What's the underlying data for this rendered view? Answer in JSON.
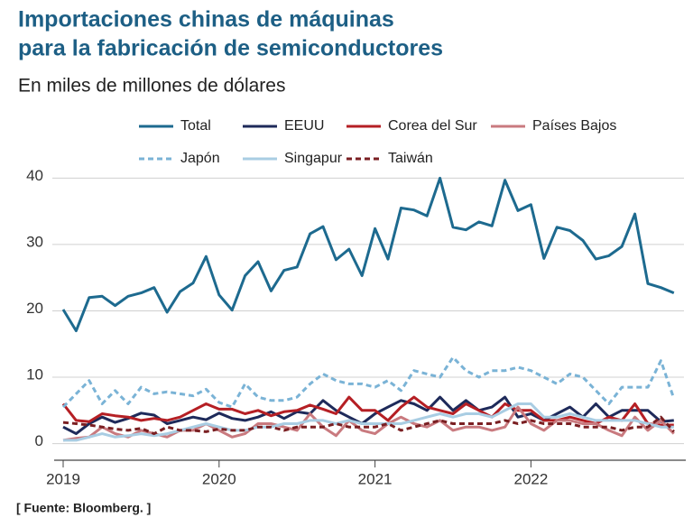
{
  "chart_data": {
    "type": "line",
    "title": [
      "Importaciones chinas de máquinas",
      "para la fabricación de semiconductores"
    ],
    "subtitle": "En miles de millones de dólares",
    "source": "[ Fuente: Bloomberg. ]",
    "categories": [
      "2019",
      null,
      null,
      null,
      null,
      null,
      null,
      null,
      null,
      null,
      null,
      null,
      "2020",
      null,
      null,
      null,
      null,
      null,
      null,
      null,
      null,
      null,
      null,
      null,
      "2021",
      null,
      null,
      null,
      null,
      null,
      null,
      null,
      null,
      null,
      null,
      null,
      "2022",
      null,
      null,
      null,
      null,
      null,
      null,
      null,
      null,
      null,
      null,
      null
    ],
    "ylim": [
      -2.5,
      41
    ],
    "yticks": [
      0,
      10,
      20,
      30,
      40
    ],
    "grid": true,
    "series": [
      {
        "name": "Total",
        "color": "#1d6a8f",
        "dashed": false,
        "values": [
          20.2,
          17,
          22,
          22.2,
          20.8,
          22.2,
          22.7,
          23.5,
          19.8,
          22.9,
          24.2,
          28.2,
          22.4,
          20.1,
          25.3,
          27.4,
          23,
          26.1,
          26.6,
          31.6,
          32.7,
          27.7,
          29.3,
          25.3,
          32.4,
          27.8,
          35.5,
          35.2,
          34.3,
          40,
          32.6,
          32.2,
          33.4,
          32.8,
          39.7,
          35.1,
          36,
          27.9,
          32.6,
          32.1,
          30.6,
          27.8,
          28.3,
          29.7,
          34.6,
          24.1,
          23.5,
          22.7
        ]
      },
      {
        "name": "EEUU",
        "color": "#1e2a5a",
        "dashed": false,
        "values": [
          2.5,
          1.5,
          3,
          4,
          3.2,
          3.8,
          4.6,
          4.3,
          3,
          3.5,
          4,
          3.6,
          4.6,
          3.8,
          3.5,
          4,
          4.8,
          3.8,
          4.8,
          4.5,
          6.5,
          5,
          4,
          3,
          4.5,
          5.5,
          6.5,
          6,
          5,
          7,
          5,
          6.5,
          5,
          5.5,
          7,
          4,
          4.5,
          3.5,
          4.5,
          5.5,
          4,
          6,
          4,
          5,
          5,
          5,
          3.3,
          3.5
        ]
      },
      {
        "name": "Corea del Sur",
        "color": "#b51f24",
        "dashed": false,
        "values": [
          6,
          3.5,
          3.3,
          4.5,
          4.2,
          4,
          3.5,
          3.8,
          3.5,
          4,
          5,
          6,
          5.2,
          5.2,
          4.5,
          5,
          4.2,
          4.8,
          5,
          5.8,
          5.2,
          4.5,
          7,
          5,
          5,
          3.5,
          5.5,
          7,
          5.5,
          5,
          4.5,
          6,
          5,
          4,
          6,
          5,
          5,
          3.5,
          3.5,
          4,
          3.5,
          3,
          4,
          3.5,
          6,
          3,
          2.8,
          2.8
        ]
      },
      {
        "name": "Países Bajos",
        "color": "#c97a7f",
        "dashed": false,
        "values": [
          0.5,
          0.8,
          1,
          2.5,
          1.5,
          1,
          2,
          1.5,
          1,
          2,
          2,
          3,
          2,
          1,
          1.5,
          3,
          3,
          2.5,
          2,
          4.5,
          2.5,
          1.2,
          3.5,
          2,
          1.5,
          3,
          4,
          3,
          2.5,
          3.5,
          2,
          2.5,
          2.5,
          2,
          2.5,
          5.5,
          3,
          2,
          3.5,
          3.5,
          3,
          3,
          2,
          1.2,
          4,
          2,
          3.5,
          1.5
        ]
      },
      {
        "name": "Japón",
        "color": "#7ab3d6",
        "dashed": true,
        "values": [
          5.5,
          7.5,
          9.5,
          6,
          8,
          6,
          8.5,
          7.5,
          7.8,
          7.5,
          7.2,
          8.2,
          6.2,
          5.5,
          9,
          7,
          6.5,
          6.5,
          7,
          9,
          10.5,
          9.5,
          9,
          9,
          8.5,
          9.5,
          8,
          11,
          10.5,
          10,
          13,
          11,
          10,
          11,
          11,
          11.5,
          11,
          10,
          9,
          10.5,
          10,
          8,
          6,
          8.5,
          8.5,
          8.5,
          12.5,
          6.8
        ]
      },
      {
        "name": "Singapur",
        "color": "#a9cde3",
        "dashed": false,
        "values": [
          0.5,
          0.5,
          1,
          1.5,
          1,
          1.2,
          1.5,
          1.2,
          1.5,
          2,
          2.5,
          3,
          2.5,
          2,
          2,
          2.5,
          2.5,
          3,
          3,
          3.5,
          3.5,
          3,
          3.5,
          3,
          3,
          3,
          3,
          3.5,
          4,
          4.5,
          4,
          4.5,
          4.5,
          4,
          5,
          6,
          6,
          4,
          4,
          4.5,
          4,
          3.5,
          3.5,
          3.5,
          3.5,
          3,
          2.5,
          2.5
        ]
      },
      {
        "name": "Taiwán",
        "color": "#7a1f22",
        "dashed": true,
        "values": [
          3.2,
          3,
          2.8,
          2.5,
          2.2,
          2,
          2.3,
          1.5,
          2.5,
          2,
          2,
          1.8,
          2.2,
          2,
          2,
          2.5,
          2.5,
          2,
          2.5,
          2.5,
          2.5,
          3,
          2.5,
          2.5,
          2.5,
          3,
          2,
          2.5,
          3,
          3.5,
          3,
          3,
          3,
          3,
          3.5,
          3,
          3.5,
          3,
          3,
          3,
          2.5,
          2.5,
          2.5,
          2,
          2.5,
          2.5,
          4,
          1.8
        ]
      }
    ]
  }
}
